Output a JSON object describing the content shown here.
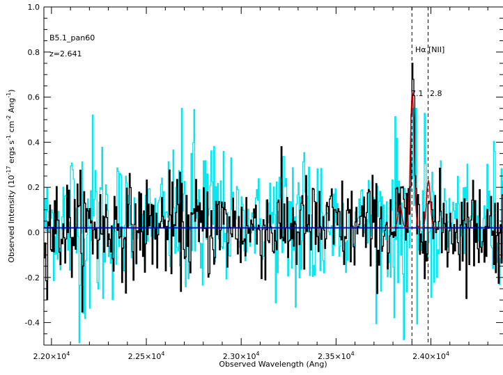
{
  "chart_data": {
    "type": "line",
    "xlabel": "Observed Wavelength (Ang)",
    "ylabel": "Observed Intensity (10^-17 ergs s^-1 cm^-2 Ang^-1)",
    "ylabel_parts": {
      "prefix": "Observed Intensity (10",
      "exp1": "-17",
      "mid1": " ergs s",
      "exp2": "-1",
      "mid2": " cm",
      "exp3": "-2",
      "mid3": " Ang",
      "exp4": "-1",
      "suffix": ")"
    },
    "xlim": [
      21960,
      24380
    ],
    "ylim": [
      -0.5,
      1.0
    ],
    "xticks": [
      {
        "value": 22000,
        "mantissa": "2.20",
        "exp": "4"
      },
      {
        "value": 22500,
        "mantissa": "2.25",
        "exp": "4"
      },
      {
        "value": 23000,
        "mantissa": "2.30",
        "exp": "4"
      },
      {
        "value": 23500,
        "mantissa": "2.35",
        "exp": "4"
      },
      {
        "value": 24000,
        "mantissa": "2.40",
        "exp": "4"
      }
    ],
    "yticks": [
      {
        "value": 1.0,
        "label": "1.0"
      },
      {
        "value": 0.8,
        "label": "0.8"
      },
      {
        "value": 0.6,
        "label": "0.6"
      },
      {
        "value": 0.4,
        "label": "0.4"
      },
      {
        "value": 0.2,
        "label": "0.2"
      },
      {
        "value": 0.0,
        "label": "0.0"
      },
      {
        "value": -0.2,
        "label": "-0.2"
      },
      {
        "value": -0.4,
        "label": "-0.4"
      }
    ],
    "object_name": "B5.1_pan60",
    "redshift_label": "z=2.641",
    "line_labels": "Hα [NII]",
    "line_labels_parts": {
      "halpha": "Hα",
      "nii": "[NII]"
    },
    "flux_labels": {
      "halpha": "7.1",
      "nii": "2.8"
    },
    "emission_lines": [
      {
        "name": "Halpha",
        "wavelength": 23900
      },
      {
        "name": "NII",
        "wavelength": 23985
      }
    ],
    "continuum_level": 0.02,
    "colors": {
      "data": "#000000",
      "noise": "#00e5ee",
      "total_fit": "#cc0000",
      "components": "#3a3aff",
      "continuum": "#0000cc"
    },
    "fit_components": [
      {
        "center": 23902,
        "sigma": 10,
        "amplitude": 0.6
      },
      {
        "center": 23987,
        "sigma": 10,
        "amplitude": 0.21
      },
      {
        "center": 23837,
        "sigma": 10,
        "amplitude": 0.1
      }
    ]
  }
}
